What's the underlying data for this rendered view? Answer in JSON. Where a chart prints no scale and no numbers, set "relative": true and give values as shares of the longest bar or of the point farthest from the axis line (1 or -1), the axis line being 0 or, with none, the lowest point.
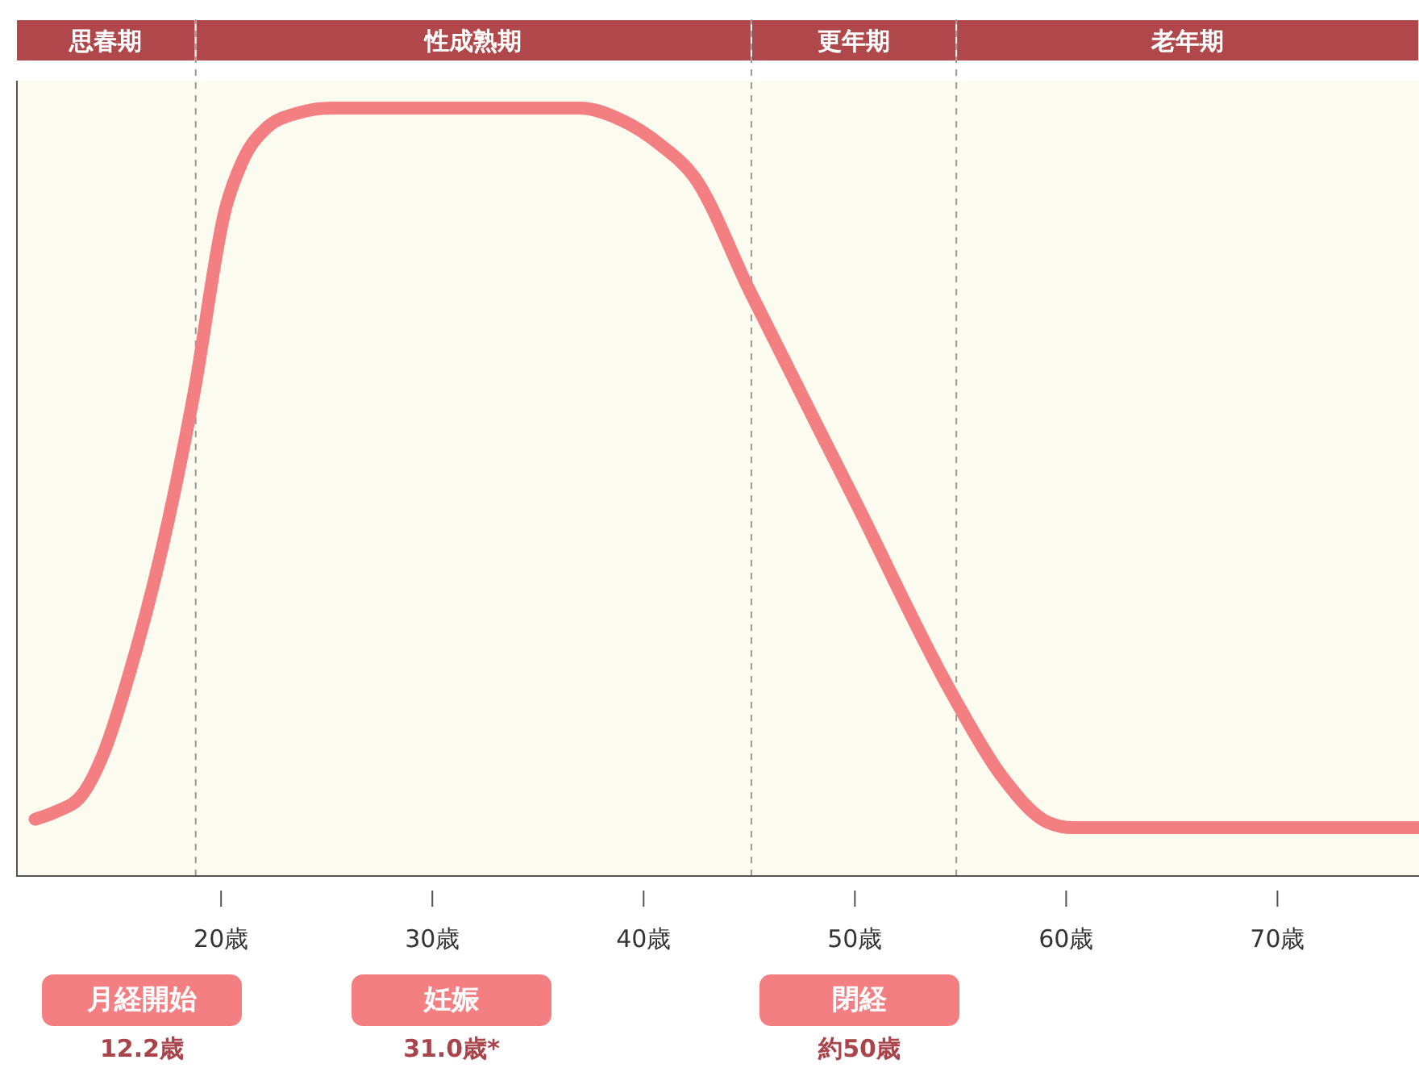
{
  "chart_data": {
    "type": "line",
    "relative": true,
    "x": [
      11.2,
      12.2,
      13.4,
      14.5,
      15.6,
      17.2,
      18.7,
      20.2,
      21.0,
      22.1,
      23.7,
      25.2,
      37.0,
      38.9,
      40.8,
      42.4,
      45.0,
      50.0,
      54.6,
      56.9,
      59.2,
      60.3,
      76.7
    ],
    "series": [
      {
        "color": "#f47f82",
        "values": [
          0.074,
          0.084,
          0.105,
          0.164,
          0.258,
          0.426,
          0.626,
          0.868,
          0.93,
          0.973,
          0.994,
          1,
          1,
          0.985,
          0.952,
          0.91,
          0.763,
          0.489,
          0.237,
          0.132,
          0.069,
          0.063,
          0.063
        ]
      }
    ],
    "xlim": [
      10.3,
      76.7
    ],
    "xticks": [
      {
        "value": 20,
        "label": "20歳"
      },
      {
        "value": 30,
        "label": "30歳"
      },
      {
        "value": 40,
        "label": "40歳"
      },
      {
        "value": 50,
        "label": "50歳"
      },
      {
        "value": 60,
        "label": "60歳"
      },
      {
        "value": 70,
        "label": "70歳"
      }
    ],
    "bands": [
      {
        "axis": "x",
        "from": 10.3,
        "to": 18.8,
        "label": "思春期",
        "color": "#fbfbef"
      },
      {
        "axis": "x",
        "from": 18.8,
        "to": 45.1,
        "label": "性成熟期",
        "color": "#fbfbef"
      },
      {
        "axis": "x",
        "from": 45.1,
        "to": 54.8,
        "label": "更年期",
        "color": "#fbfbef"
      },
      {
        "axis": "x",
        "from": 54.8,
        "to": 76.7,
        "label": "老年期",
        "color": "#fbfbef"
      }
    ],
    "ref_lines": [
      {
        "axis": "x",
        "value": 18.8,
        "line_style": "dashed"
      },
      {
        "axis": "x",
        "value": 45.1,
        "line_style": "dashed"
      },
      {
        "axis": "x",
        "value": 54.8,
        "line_style": "dashed"
      }
    ],
    "annotations": [
      "月経開始",
      "12.2歳",
      "妊娠",
      "31.0歳*",
      "閉経",
      "約50歳"
    ],
    "grid": false,
    "legend": false,
    "marker": "none",
    "line_style": "solid"
  }
}
